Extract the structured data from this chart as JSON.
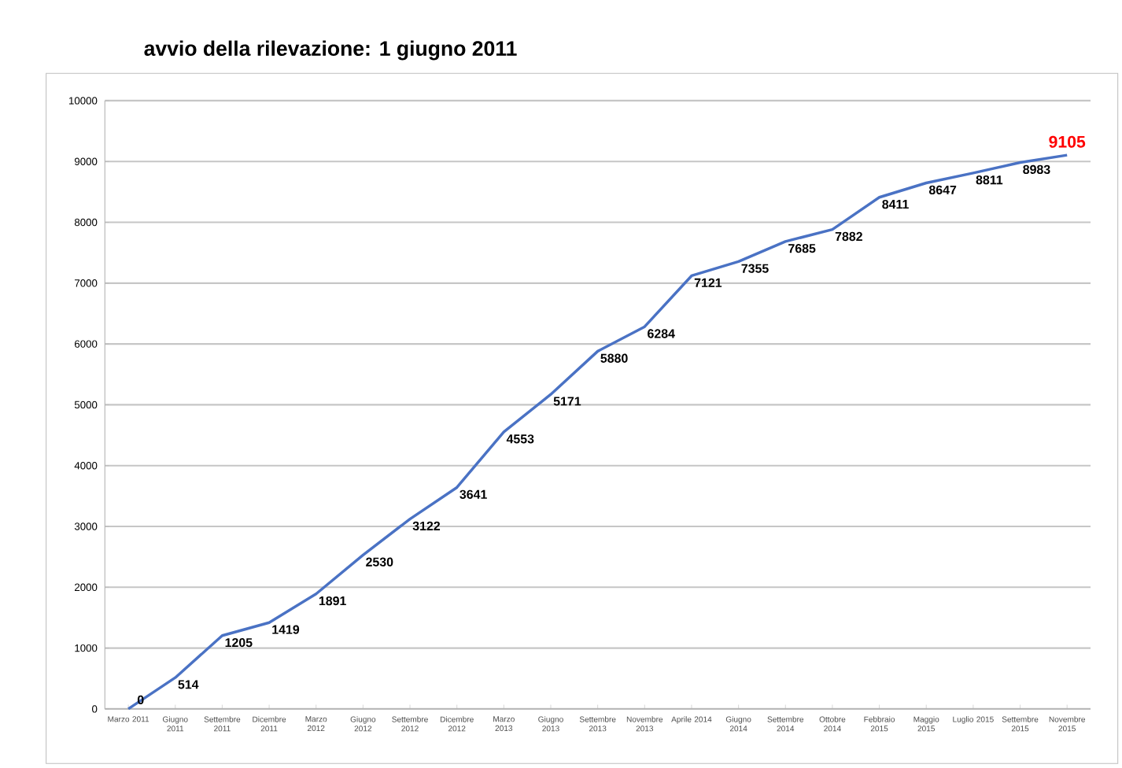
{
  "chart_data": {
    "type": "line",
    "title": "avvio della rilevazione: 1 giugno 2011",
    "categories": [
      "Marzo 2011",
      "Giugno 2011",
      "Settembre 2011",
      "Dicembre 2011",
      "Marzo 2012",
      "Giugno 2012",
      "Settembre 2012",
      "Dicembre 2012",
      "Marzo 2013",
      "Giugno 2013",
      "Settembre 2013",
      "Novembre 2013",
      "Aprile 2014",
      "Giugno 2014",
      "Settembre 2014",
      "Ottobre 2014",
      "Febbraio 2015",
      "Maggio 2015",
      "Luglio 2015",
      "Settembre 2015",
      "Novembre 2015"
    ],
    "values": [
      0,
      514,
      1205,
      1419,
      1891,
      2530,
      3122,
      3641,
      4553,
      5171,
      5880,
      6284,
      7121,
      7355,
      7685,
      7882,
      8411,
      8647,
      8811,
      8983,
      9105
    ],
    "value_labels": [
      "0",
      "514",
      "1205",
      "1419",
      "1891",
      "2530",
      "3122",
      "3641",
      "4553",
      "5171",
      "5880",
      "6284",
      "7121",
      "7355",
      "7685",
      "7882",
      "8411",
      "8647",
      "8811",
      "8983",
      null
    ],
    "annotations": [
      {
        "text": "9105",
        "x": "Novembre 2015",
        "y": 9105
      }
    ],
    "color": "#4a72c4",
    "ylim": [
      0,
      10000
    ],
    "yticks": [
      0,
      1000,
      2000,
      3000,
      4000,
      5000,
      6000,
      7000,
      8000,
      9000,
      10000
    ],
    "grid": "y",
    "marker": "none",
    "line_style": "solid"
  }
}
